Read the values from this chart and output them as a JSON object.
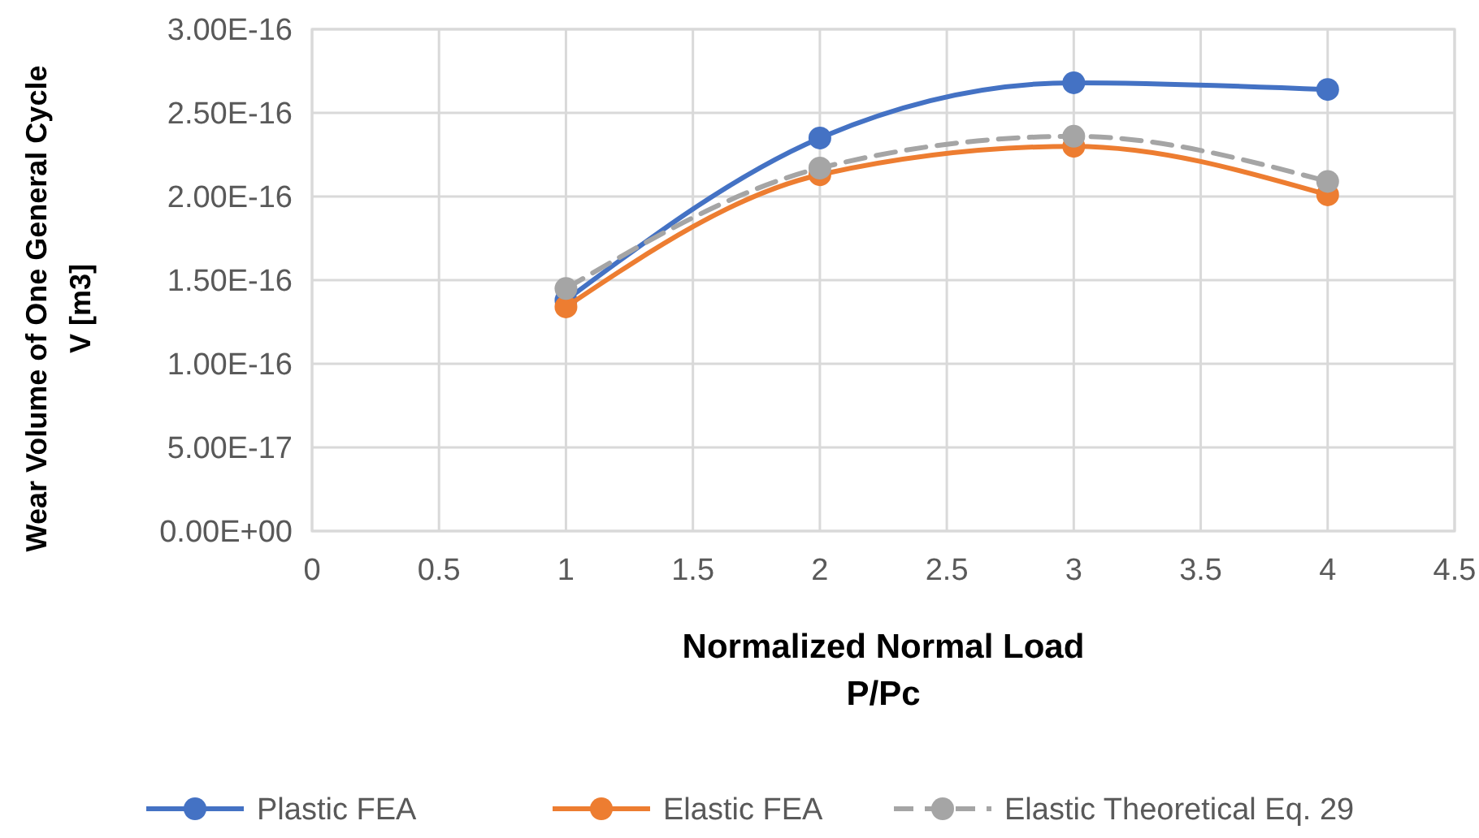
{
  "chart_data": {
    "type": "line",
    "xlabel": "Normalized Normal Load\nP/Pc",
    "ylabel": "Wear Volume of One General Cycle\nV [m3]",
    "x": [
      1,
      2,
      3,
      4
    ],
    "series": [
      {
        "name": "Plastic FEA",
        "color": "#4472c4",
        "values": [
          1.38e-16,
          2.35e-16,
          2.68e-16,
          2.64e-16
        ]
      },
      {
        "name": "Elastic FEA",
        "color": "#ed7d31",
        "values": [
          1.34e-16,
          2.13e-16,
          2.3e-16,
          2.01e-16
        ]
      },
      {
        "name": "Elastic Theoretical Eq. 29",
        "color": "#a5a5a5",
        "line_style": "dashed",
        "values": [
          1.45e-16,
          2.17e-16,
          2.36e-16,
          2.09e-16
        ]
      }
    ],
    "xlim": [
      0,
      4.5
    ],
    "xticks": [
      0,
      0.5,
      1,
      1.5,
      2,
      2.5,
      3,
      3.5,
      4,
      4.5
    ],
    "ylim": [
      0,
      3e-16
    ],
    "yticks": [
      {
        "value": 0,
        "label": "0.00E+00"
      },
      {
        "value": 5e-17,
        "label": "5.00E-17"
      },
      {
        "value": 1e-16,
        "label": "1.00E-16"
      },
      {
        "value": 1.5e-16,
        "label": "1.50E-16"
      },
      {
        "value": 2e-16,
        "label": "2.00E-16"
      },
      {
        "value": 2.5e-16,
        "label": "2.50E-16"
      },
      {
        "value": 3e-16,
        "label": "3.00E-16"
      }
    ],
    "grid": true,
    "legend": "bottom",
    "marker": "circle",
    "line_style": "solid"
  }
}
